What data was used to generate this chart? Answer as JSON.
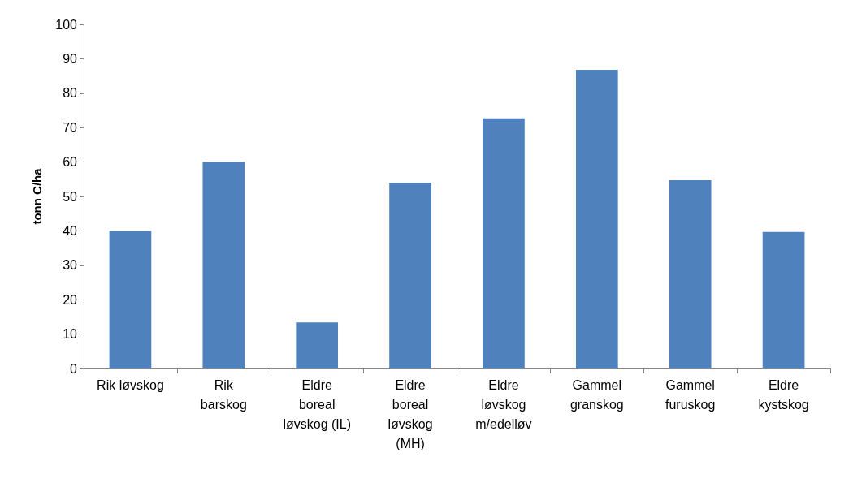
{
  "chart_data": {
    "type": "bar",
    "ylabel": "tonn C/ha",
    "categories": [
      "Rik løvskog",
      "Rik\nbarskog",
      "Eldre\nboreal\nløvskog (IL)",
      "Eldre\nboreal\nløvskog\n(MH)",
      "Eldre\nløvskog\nm/edelløv",
      "Gammel\ngranskog",
      "Gammel\nfuruskog",
      "Eldre\nkystskog"
    ],
    "values": [
      40,
      60,
      13.4,
      54,
      72.7,
      86.8,
      54.7,
      39.7
    ],
    "color": "#4f81bd",
    "ylim": [
      0,
      100
    ],
    "yticks": [
      0,
      10,
      20,
      30,
      40,
      50,
      60,
      70,
      80,
      90,
      100
    ],
    "grid": false
  }
}
